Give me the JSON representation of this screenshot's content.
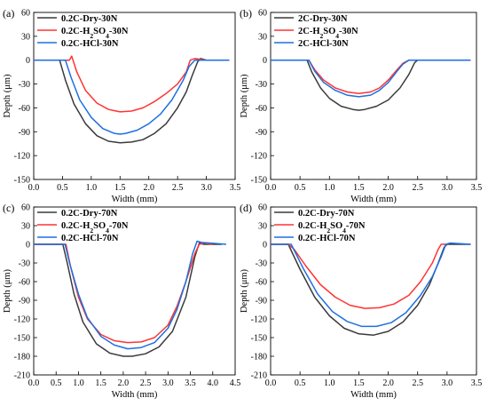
{
  "chart_data": [
    {
      "type": "line",
      "panel_label": "(a)",
      "xlabel": "Width (mm)",
      "ylabel": "Depth (μm)",
      "xlim": [
        0.0,
        3.5
      ],
      "ylim": [
        -150,
        60
      ],
      "xticks": [
        "0.0",
        "0.5",
        "1.0",
        "1.5",
        "2.0",
        "2.5",
        "3.0",
        "3.5"
      ],
      "yticks": [
        "-150",
        "-120",
        "-90",
        "-60",
        "-30",
        "0",
        "30",
        "60"
      ],
      "legend_position": "top-left",
      "series": [
        {
          "name": "0.2C-Dry-30N",
          "name_parts": [
            {
              "t": "0.2C-Dry-30N"
            }
          ],
          "color": "#3a3a3a",
          "x": [
            0.0,
            0.35,
            0.45,
            0.55,
            0.7,
            0.9,
            1.1,
            1.3,
            1.5,
            1.7,
            1.9,
            2.1,
            2.3,
            2.5,
            2.65,
            2.75,
            2.85,
            2.9,
            3.0,
            3.4
          ],
          "y": [
            0,
            0,
            0,
            -25,
            -55,
            -80,
            -95,
            -102,
            -104,
            -103,
            -100,
            -92,
            -80,
            -60,
            -40,
            -20,
            -2,
            2,
            0,
            0
          ]
        },
        {
          "name": "0.2C-H2SO4-30N",
          "name_parts": [
            {
              "t": "0.2C-H"
            },
            {
              "t": "2",
              "sub": true
            },
            {
              "t": "SO"
            },
            {
              "t": "4",
              "sub": true
            },
            {
              "t": "-30N"
            }
          ],
          "color": "#ff3333",
          "x": [
            0.0,
            0.5,
            0.62,
            0.66,
            0.75,
            0.9,
            1.1,
            1.3,
            1.5,
            1.7,
            1.9,
            2.1,
            2.3,
            2.5,
            2.65,
            2.72,
            2.8,
            3.0,
            3.4
          ],
          "y": [
            0,
            0,
            0,
            5,
            -15,
            -38,
            -54,
            -62,
            -65,
            -64,
            -60,
            -52,
            -42,
            -30,
            -15,
            0,
            2,
            0,
            0
          ]
        },
        {
          "name": "0.2C-HCl-30N",
          "name_parts": [
            {
              "t": "0.2C-HCl-30N"
            }
          ],
          "color": "#1e6fe0",
          "x": [
            0.0,
            0.45,
            0.55,
            0.65,
            0.8,
            1.0,
            1.2,
            1.4,
            1.5,
            1.6,
            1.8,
            2.0,
            2.2,
            2.4,
            2.6,
            2.7,
            2.8,
            3.0,
            3.4
          ],
          "y": [
            0,
            0,
            0,
            -22,
            -50,
            -72,
            -86,
            -92,
            -93,
            -92,
            -88,
            -80,
            -68,
            -50,
            -25,
            -8,
            0,
            0,
            0
          ]
        }
      ]
    },
    {
      "type": "line",
      "panel_label": "(b)",
      "xlabel": "Width (mm)",
      "ylabel": "Depth (μm)",
      "xlim": [
        0.0,
        3.5
      ],
      "ylim": [
        -150,
        60
      ],
      "xticks": [
        "0.0",
        "0.5",
        "1.0",
        "1.5",
        "2.0",
        "2.5",
        "3.0",
        "3.5"
      ],
      "yticks": [
        "-150",
        "-120",
        "-90",
        "-60",
        "-30",
        "0",
        "30",
        "60"
      ],
      "legend_position": "top-left",
      "series": [
        {
          "name": "2C-Dry-30N",
          "name_parts": [
            {
              "t": "2C-Dry-30N"
            }
          ],
          "color": "#3a3a3a",
          "x": [
            0.0,
            0.55,
            0.62,
            0.7,
            0.85,
            1.0,
            1.2,
            1.4,
            1.5,
            1.6,
            1.8,
            2.0,
            2.2,
            2.35,
            2.45,
            2.5,
            2.6,
            3.4
          ],
          "y": [
            0,
            0,
            0,
            -15,
            -35,
            -48,
            -58,
            -62,
            -63,
            -62,
            -58,
            -50,
            -35,
            -18,
            -3,
            0,
            0,
            0
          ]
        },
        {
          "name": "2C-H2SO4-30N",
          "name_parts": [
            {
              "t": "2C-H"
            },
            {
              "t": "2",
              "sub": true
            },
            {
              "t": "SO"
            },
            {
              "t": "4",
              "sub": true
            },
            {
              "t": "-30N"
            }
          ],
          "color": "#ff3333",
          "x": [
            0.0,
            0.6,
            0.65,
            0.75,
            0.9,
            1.1,
            1.3,
            1.5,
            1.7,
            1.85,
            2.0,
            2.15,
            2.25,
            2.35,
            2.5,
            3.4
          ],
          "y": [
            0,
            0,
            0,
            -12,
            -25,
            -35,
            -40,
            -42,
            -40,
            -35,
            -25,
            -12,
            -4,
            0,
            0,
            0
          ]
        },
        {
          "name": "2C-HCl-30N",
          "name_parts": [
            {
              "t": "2C-HCl-30N"
            }
          ],
          "color": "#1e6fe0",
          "x": [
            0.0,
            0.6,
            0.65,
            0.75,
            0.9,
            1.1,
            1.3,
            1.5,
            1.7,
            1.85,
            2.0,
            2.15,
            2.25,
            2.35,
            2.5,
            3.4
          ],
          "y": [
            0,
            0,
            0,
            -14,
            -28,
            -38,
            -44,
            -46,
            -44,
            -38,
            -28,
            -14,
            -5,
            0,
            0,
            0
          ]
        }
      ]
    },
    {
      "type": "line",
      "panel_label": "(c)",
      "xlabel": "Width (mm)",
      "ylabel": "Depth (μm)",
      "xlim": [
        0.0,
        4.5
      ],
      "ylim": [
        -210,
        60
      ],
      "xticks": [
        "0.0",
        "0.5",
        "1.0",
        "1.5",
        "2.0",
        "2.5",
        "3.0",
        "3.5",
        "4.0",
        "4.5"
      ],
      "yticks": [
        "-210",
        "-180",
        "-150",
        "-120",
        "-90",
        "-60",
        "-30",
        "0",
        "30",
        "60"
      ],
      "legend_position": "top-left",
      "series": [
        {
          "name": "0.2C-Dry-70N",
          "name_parts": [
            {
              "t": "0.2C-Dry-70N"
            }
          ],
          "color": "#3a3a3a",
          "x": [
            0.0,
            0.6,
            0.65,
            0.75,
            0.9,
            1.1,
            1.4,
            1.7,
            2.0,
            2.2,
            2.5,
            2.8,
            3.1,
            3.4,
            3.6,
            3.7,
            3.8,
            4.2
          ],
          "y": [
            0,
            0,
            0,
            -30,
            -80,
            -125,
            -160,
            -175,
            -180,
            -180,
            -176,
            -165,
            -140,
            -85,
            -20,
            2,
            0,
            0
          ]
        },
        {
          "name": "0.2C-H2SO4-70N",
          "name_parts": [
            {
              "t": "0.2C-H"
            },
            {
              "t": "2",
              "sub": true
            },
            {
              "t": "SO"
            },
            {
              "t": "4",
              "sub": true
            },
            {
              "t": "-70N"
            }
          ],
          "color": "#ff3333",
          "x": [
            0.0,
            0.65,
            0.72,
            0.82,
            1.0,
            1.2,
            1.5,
            1.8,
            2.1,
            2.4,
            2.7,
            3.0,
            3.2,
            3.4,
            3.6,
            3.7,
            3.8,
            4.0
          ],
          "y": [
            0,
            0,
            0,
            -35,
            -85,
            -120,
            -145,
            -155,
            -158,
            -157,
            -150,
            -130,
            -100,
            -60,
            -15,
            0,
            2,
            0
          ]
        },
        {
          "name": "0.2C-HCl-70N",
          "name_parts": [
            {
              "t": "0.2C-HCl-70N"
            }
          ],
          "color": "#1e6fe0",
          "x": [
            0.0,
            0.65,
            0.7,
            0.8,
            1.0,
            1.2,
            1.5,
            1.8,
            2.1,
            2.4,
            2.7,
            3.0,
            3.2,
            3.4,
            3.55,
            3.65,
            3.75,
            4.3
          ],
          "y": [
            0,
            0,
            0,
            -30,
            -80,
            -118,
            -148,
            -162,
            -168,
            -166,
            -158,
            -135,
            -105,
            -60,
            -15,
            5,
            3,
            0
          ]
        }
      ]
    },
    {
      "type": "line",
      "panel_label": "(d)",
      "xlabel": "Width (mm)",
      "ylabel": "Depth (μm)",
      "xlim": [
        0.0,
        3.5
      ],
      "ylim": [
        -210,
        60
      ],
      "xticks": [
        "0.0",
        "0.5",
        "1.0",
        "1.5",
        "2.0",
        "2.5",
        "3.0",
        "3.5"
      ],
      "yticks": [
        "-210",
        "-180",
        "-150",
        "-120",
        "-90",
        "-60",
        "-30",
        "0",
        "30",
        "60"
      ],
      "legend_position": "top-left",
      "series": [
        {
          "name": "0.2C-Dry-70N",
          "name_parts": [
            {
              "t": "0.2C-Dry-70N"
            }
          ],
          "color": "#3a3a3a",
          "x": [
            0.0,
            0.25,
            0.3,
            0.5,
            0.75,
            1.0,
            1.25,
            1.5,
            1.75,
            2.0,
            2.25,
            2.5,
            2.7,
            2.85,
            2.95,
            3.0,
            3.4
          ],
          "y": [
            0,
            0,
            0,
            -40,
            -85,
            -115,
            -135,
            -144,
            -146,
            -140,
            -125,
            -98,
            -65,
            -30,
            -5,
            0,
            0
          ]
        },
        {
          "name": "0.2C-H2SO4-70N",
          "name_parts": [
            {
              "t": "0.2C-H"
            },
            {
              "t": "2",
              "sub": true
            },
            {
              "t": "SO"
            },
            {
              "t": "4",
              "sub": true
            },
            {
              "t": "-70N"
            }
          ],
          "color": "#ff3333",
          "x": [
            0.0,
            0.3,
            0.4,
            0.6,
            0.85,
            1.1,
            1.35,
            1.6,
            1.85,
            2.1,
            2.35,
            2.55,
            2.75,
            2.85,
            2.9,
            3.0
          ],
          "y": [
            0,
            0,
            -8,
            -35,
            -65,
            -85,
            -98,
            -103,
            -102,
            -96,
            -82,
            -60,
            -30,
            -8,
            0,
            0
          ]
        },
        {
          "name": "0.2C-HCl-70N",
          "name_parts": [
            {
              "t": "0.2C-HCl-70N"
            }
          ],
          "color": "#1e6fe0",
          "x": [
            0.0,
            0.28,
            0.35,
            0.55,
            0.8,
            1.05,
            1.3,
            1.55,
            1.8,
            2.05,
            2.3,
            2.55,
            2.75,
            2.9,
            2.98,
            3.05,
            3.4
          ],
          "y": [
            0,
            0,
            0,
            -38,
            -80,
            -108,
            -124,
            -132,
            -132,
            -126,
            -110,
            -82,
            -52,
            -20,
            0,
            2,
            0
          ]
        }
      ]
    }
  ]
}
